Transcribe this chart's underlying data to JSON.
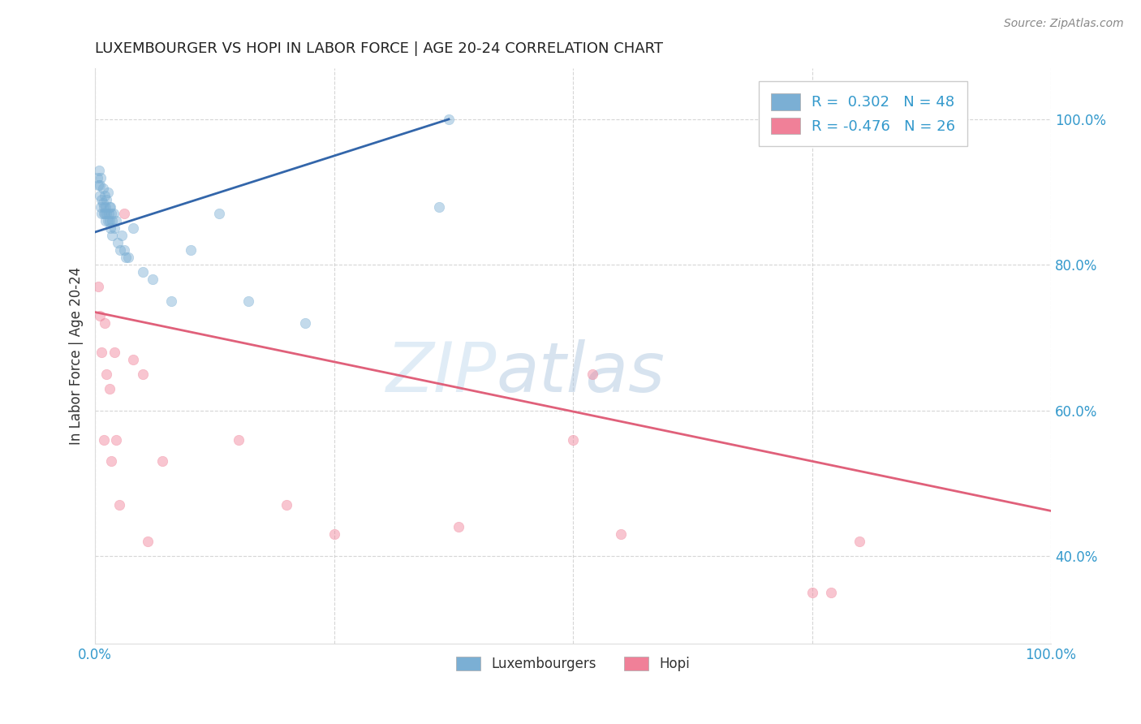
{
  "title": "LUXEMBOURGER VS HOPI IN LABOR FORCE | AGE 20-24 CORRELATION CHART",
  "source_text": "Source: ZipAtlas.com",
  "ylabel": "In Labor Force | Age 20-24",
  "watermark": "ZIPatlas",
  "legend_entries": [
    {
      "label": "Luxembourgers",
      "R": "0.302",
      "N": "48",
      "color": "#aac4e0"
    },
    {
      "label": "Hopi",
      "R": "-0.476",
      "N": "26",
      "color": "#f4a7b9"
    }
  ],
  "blue_scatter_x": [
    0.002,
    0.003,
    0.004,
    0.005,
    0.005,
    0.006,
    0.006,
    0.007,
    0.007,
    0.008,
    0.008,
    0.009,
    0.009,
    0.01,
    0.01,
    0.011,
    0.011,
    0.012,
    0.012,
    0.013,
    0.013,
    0.014,
    0.015,
    0.015,
    0.016,
    0.016,
    0.017,
    0.018,
    0.018,
    0.019,
    0.02,
    0.022,
    0.024,
    0.026,
    0.028,
    0.03,
    0.032,
    0.035,
    0.04,
    0.05,
    0.06,
    0.08,
    0.1,
    0.13,
    0.16,
    0.22,
    0.36,
    0.37
  ],
  "blue_scatter_y": [
    0.92,
    0.91,
    0.93,
    0.895,
    0.91,
    0.88,
    0.92,
    0.89,
    0.87,
    0.885,
    0.905,
    0.88,
    0.87,
    0.87,
    0.895,
    0.86,
    0.88,
    0.87,
    0.89,
    0.9,
    0.86,
    0.87,
    0.88,
    0.86,
    0.85,
    0.88,
    0.87,
    0.86,
    0.84,
    0.87,
    0.85,
    0.86,
    0.83,
    0.82,
    0.84,
    0.82,
    0.81,
    0.81,
    0.85,
    0.79,
    0.78,
    0.75,
    0.82,
    0.87,
    0.75,
    0.72,
    0.88,
    1.0
  ],
  "pink_scatter_x": [
    0.003,
    0.005,
    0.007,
    0.009,
    0.01,
    0.012,
    0.015,
    0.017,
    0.02,
    0.022,
    0.025,
    0.03,
    0.04,
    0.05,
    0.055,
    0.07,
    0.15,
    0.2,
    0.25,
    0.38,
    0.5,
    0.52,
    0.55,
    0.75,
    0.77,
    0.8
  ],
  "pink_scatter_y": [
    0.77,
    0.73,
    0.68,
    0.56,
    0.72,
    0.65,
    0.63,
    0.53,
    0.68,
    0.56,
    0.47,
    0.87,
    0.67,
    0.65,
    0.42,
    0.53,
    0.56,
    0.47,
    0.43,
    0.44,
    0.56,
    0.65,
    0.43,
    0.35,
    0.35,
    0.42
  ],
  "blue_line_x": [
    0.0,
    0.37
  ],
  "blue_line_y": [
    0.845,
    1.0
  ],
  "pink_line_x": [
    0.0,
    1.0
  ],
  "pink_line_y": [
    0.735,
    0.462
  ],
  "xlim": [
    0.0,
    1.0
  ],
  "ylim": [
    0.28,
    1.07
  ],
  "yticks": [
    0.4,
    0.6,
    0.8,
    1.0
  ],
  "xticks": [
    0.0,
    0.25,
    0.5,
    0.75,
    1.0
  ],
  "scatter_size": 80,
  "scatter_alpha": 0.45,
  "blue_color": "#7bafd4",
  "pink_color": "#f08098",
  "blue_line_color": "#3366aa",
  "pink_line_color": "#e0607a",
  "legend_r_color": "#3399cc",
  "background_color": "#ffffff",
  "grid_color": "#cccccc",
  "title_color": "#222222",
  "axis_label_color": "#333333",
  "tick_label_color": "#3399cc",
  "watermark_color": "#c8ddf0",
  "watermark_alpha": 0.55
}
